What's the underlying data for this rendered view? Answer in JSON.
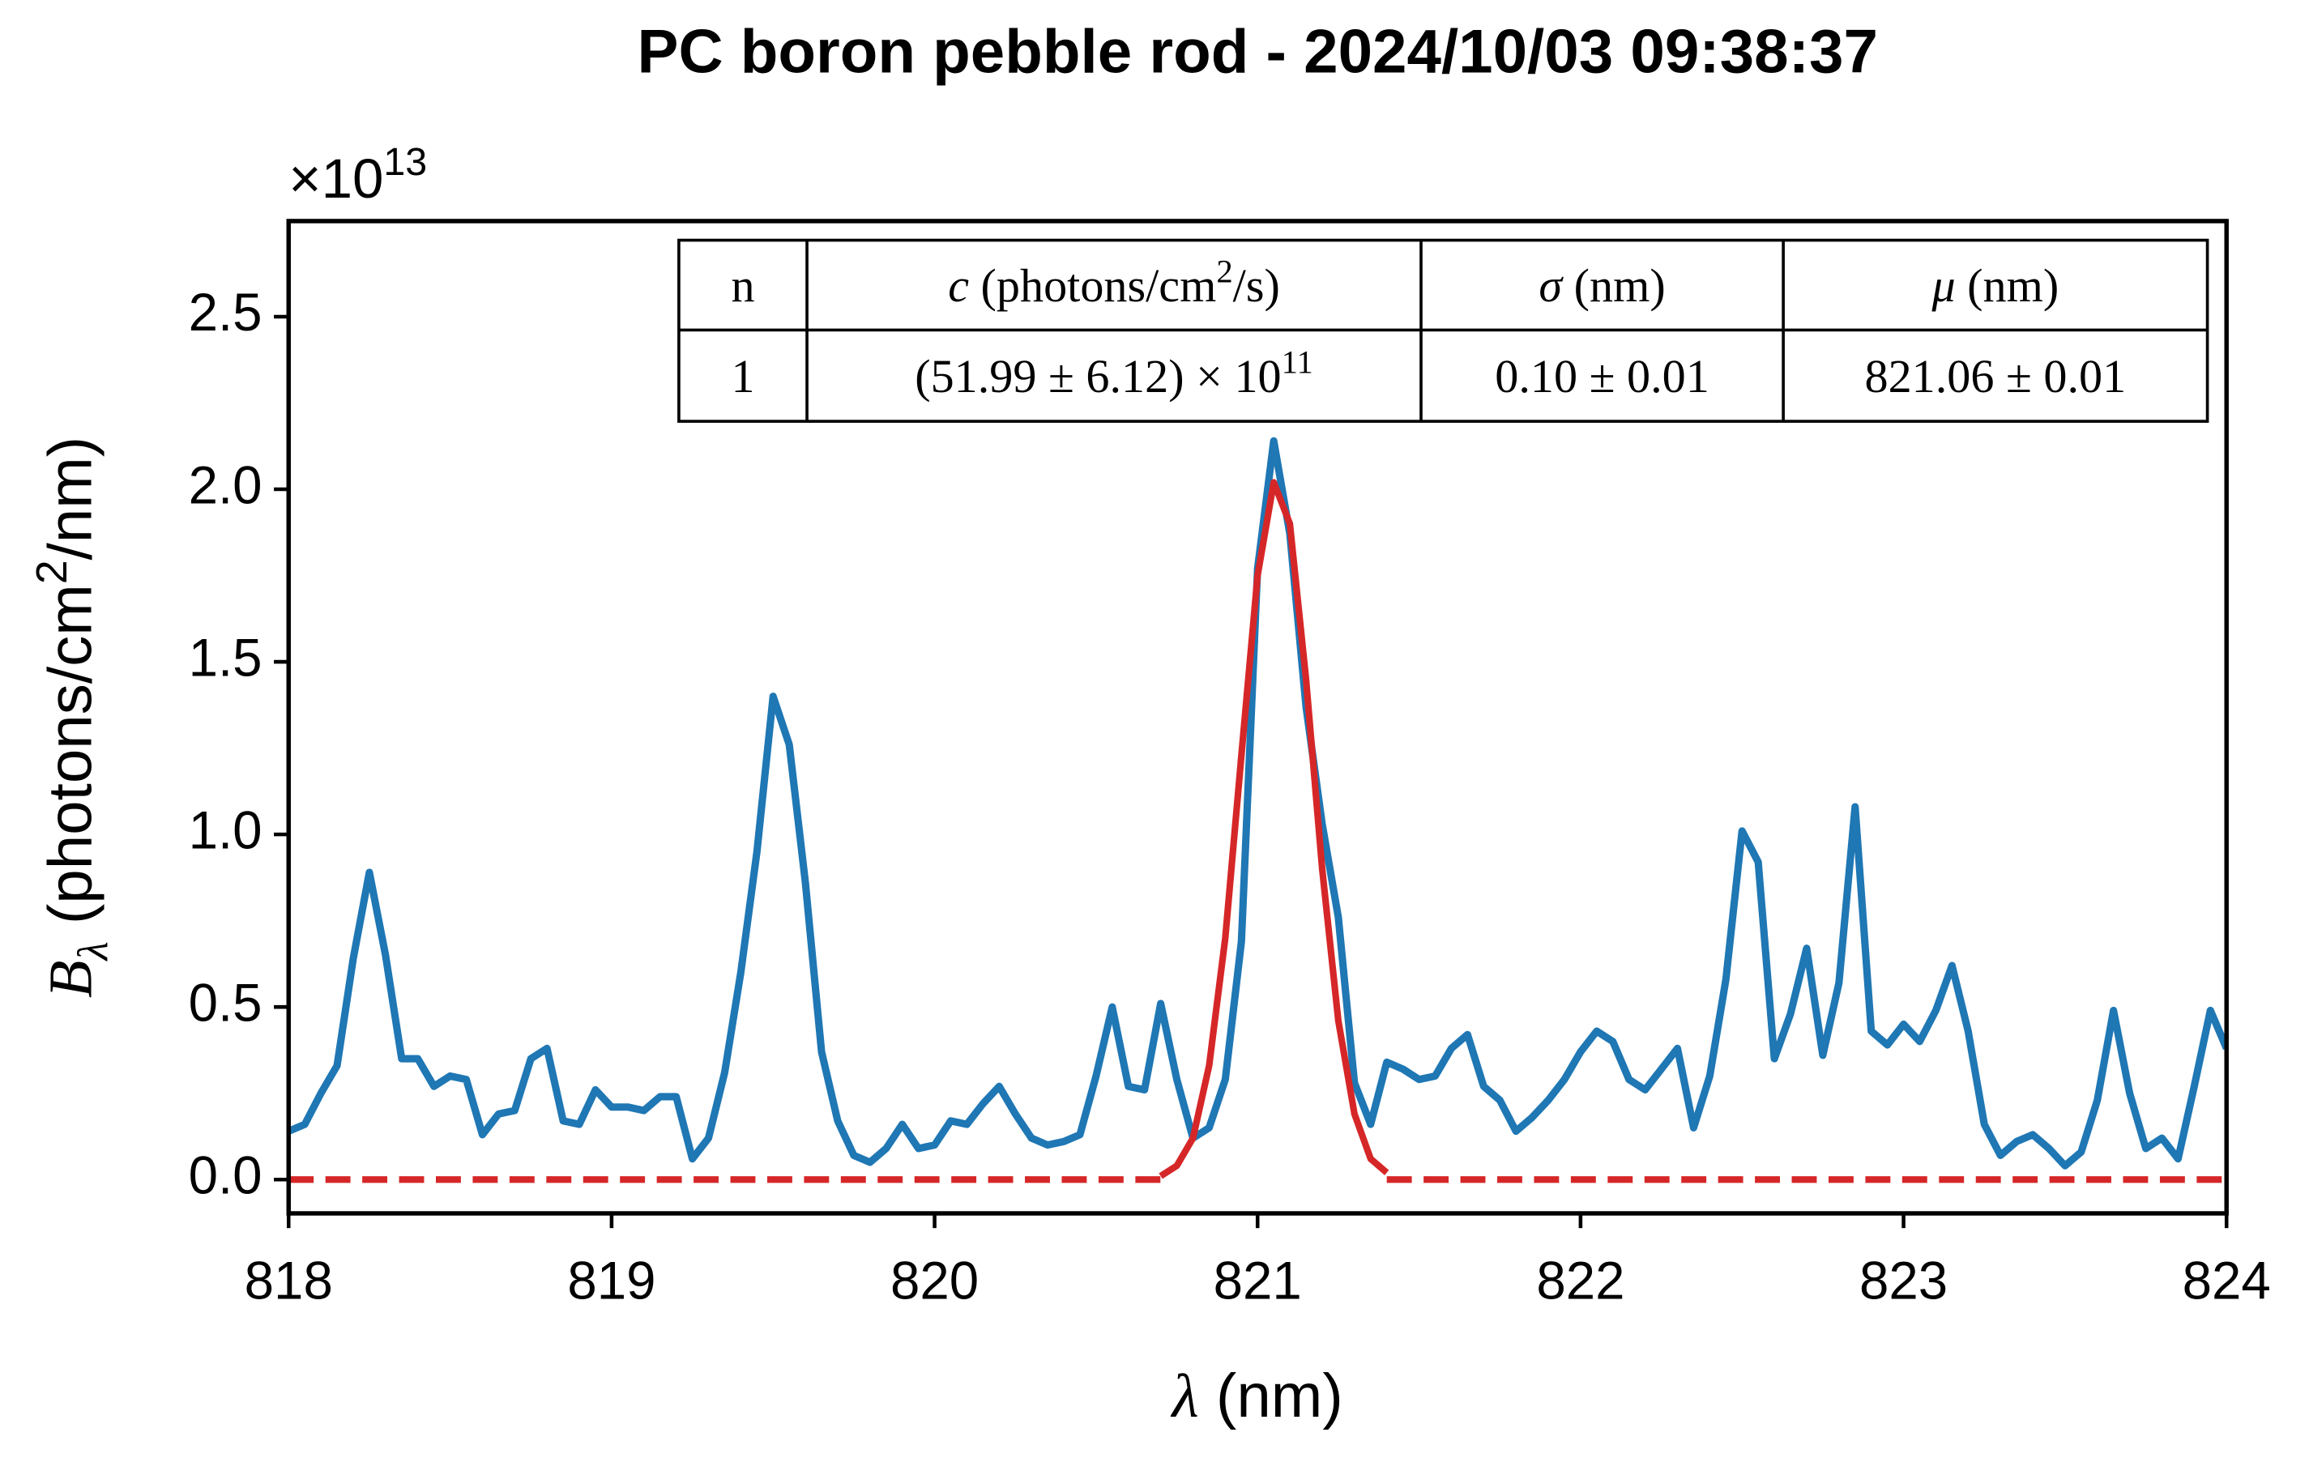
{
  "chart_data": {
    "type": "line",
    "title": "PC boron pebble rod - 2024/10/03 09:38:37",
    "xlabel": [
      {
        "text": "λ",
        "style": "italic"
      },
      {
        "text": " (nm)",
        "style": "normal"
      }
    ],
    "ylabel": [
      {
        "text": "B",
        "style": "italic"
      },
      {
        "text": "λ",
        "style": "sub"
      },
      {
        "text": " (photons/cm",
        "style": "normal"
      },
      {
        "text": "2",
        "style": "sup"
      },
      {
        "text": "/nm)",
        "style": "normal"
      }
    ],
    "offset_label": [
      {
        "text": "×10",
        "style": "normal"
      },
      {
        "text": "13",
        "style": "sup"
      }
    ],
    "xlim": [
      818,
      824
    ],
    "ylim": [
      -0.098,
      2.777
    ],
    "xticks": [
      818,
      819,
      820,
      821,
      822,
      823,
      824
    ],
    "yticks": [
      {
        "value": 0,
        "label": "0.0"
      },
      0.5,
      {
        "value": 1,
        "label": "1.0"
      },
      1.5,
      {
        "value": 2,
        "label": "2.0"
      },
      2.5
    ],
    "series": [
      {
        "color": "#1f77b4",
        "linestyle": "solid",
        "x": [
          818,
          818.05,
          818.1,
          818.15,
          818.2,
          818.25,
          818.3,
          818.35,
          818.4,
          818.45,
          818.5,
          818.55,
          818.6,
          818.65,
          818.7,
          818.75,
          818.8,
          818.85,
          818.9,
          818.95,
          819,
          819.05,
          819.1,
          819.15,
          819.2,
          819.25,
          819.3,
          819.35,
          819.4,
          819.45,
          819.5,
          819.55,
          819.6,
          819.65,
          819.7,
          819.75,
          819.8,
          819.85,
          819.9,
          819.95,
          820,
          820.05,
          820.1,
          820.15,
          820.2,
          820.25,
          820.3,
          820.35,
          820.4,
          820.45,
          820.5,
          820.55,
          820.6,
          820.65,
          820.7,
          820.75,
          820.8,
          820.85,
          820.9,
          820.95,
          821,
          821.05,
          821.1,
          821.15,
          821.2,
          821.25,
          821.3,
          821.35,
          821.4,
          821.45,
          821.5,
          821.55,
          821.6,
          821.65,
          821.7,
          821.75,
          821.8,
          821.85,
          821.9,
          821.95,
          822,
          822.05,
          822.1,
          822.15,
          822.2,
          822.25,
          822.3,
          822.35,
          822.4,
          822.45,
          822.5,
          822.55,
          822.6,
          822.65,
          822.7,
          822.75,
          822.8,
          822.85,
          822.9,
          822.95,
          823,
          823.05,
          823.1,
          823.15,
          823.2,
          823.25,
          823.3,
          823.35,
          823.4,
          823.45,
          823.5,
          823.55,
          823.6,
          823.65,
          823.7,
          823.75,
          823.8,
          823.85,
          823.9,
          823.95,
          824
        ],
        "values": [
          0.14,
          0.16,
          0.25,
          0.33,
          0.64,
          0.89,
          0.65,
          0.35,
          0.35,
          0.27,
          0.3,
          0.29,
          0.13,
          0.19,
          0.2,
          0.35,
          0.38,
          0.17,
          0.16,
          0.26,
          0.21,
          0.21,
          0.2,
          0.24,
          0.24,
          0.06,
          0.12,
          0.31,
          0.6,
          0.95,
          1.4,
          1.26,
          0.86,
          0.37,
          0.17,
          0.07,
          0.05,
          0.09,
          0.16,
          0.09,
          0.1,
          0.17,
          0.16,
          0.22,
          0.27,
          0.19,
          0.12,
          0.1,
          0.11,
          0.13,
          0.3,
          0.5,
          0.27,
          0.26,
          0.51,
          0.29,
          0.12,
          0.15,
          0.29,
          0.69,
          1.77,
          2.14,
          1.87,
          1.37,
          1.03,
          0.76,
          0.28,
          0.16,
          0.34,
          0.32,
          0.29,
          0.3,
          0.38,
          0.42,
          0.27,
          0.23,
          0.14,
          0.18,
          0.23,
          0.29,
          0.37,
          0.43,
          0.4,
          0.29,
          0.26,
          0.32,
          0.38,
          0.15,
          0.3,
          0.58,
          1.01,
          0.92,
          0.35,
          0.48,
          0.67,
          0.36,
          0.57,
          1.08,
          0.43,
          0.39,
          0.45,
          0.4,
          0.49,
          0.62,
          0.43,
          0.16,
          0.07,
          0.11,
          0.13,
          0.09,
          0.04,
          0.08,
          0.23,
          0.49,
          0.25,
          0.09,
          0.12,
          0.06,
          0.27,
          0.49,
          0.38
        ]
      },
      {
        "color": "#d62728",
        "linestyle": "dashed",
        "x": [
          818,
          820.7
        ],
        "values": [
          0,
          0
        ]
      },
      {
        "color": "#d62728",
        "linestyle": "solid",
        "x": [
          820.7,
          820.75,
          820.8,
          820.85,
          820.9,
          820.95,
          821,
          821.05,
          821.1,
          821.15,
          821.2,
          821.25,
          821.3,
          821.35,
          821.4
        ],
        "values": [
          0.01,
          0.04,
          0.12,
          0.33,
          0.7,
          1.23,
          1.75,
          2.02,
          1.9,
          1.45,
          0.9,
          0.46,
          0.19,
          0.06,
          0.02
        ]
      },
      {
        "color": "#d62728",
        "linestyle": "dashed",
        "x": [
          821.4,
          824
        ],
        "values": [
          0,
          0
        ]
      }
    ],
    "table": {
      "header": [
        [
          {
            "text": "n",
            "style": "normal"
          }
        ],
        [
          {
            "text": "c",
            "style": "italic"
          },
          {
            "text": " (photons/cm",
            "style": "normal"
          },
          {
            "text": "2",
            "style": "sup"
          },
          {
            "text": "/s)",
            "style": "normal"
          }
        ],
        [
          {
            "text": "σ",
            "style": "italic"
          },
          {
            "text": " (nm)",
            "style": "normal"
          }
        ],
        [
          {
            "text": "μ",
            "style": "italic"
          },
          {
            "text": " (nm)",
            "style": "normal"
          }
        ]
      ],
      "rows": [
        [
          [
            {
              "text": "1",
              "style": "normal"
            }
          ],
          [
            {
              "text": "(51.99 ± 6.12) × 10",
              "style": "normal"
            },
            {
              "text": "11",
              "style": "sup"
            }
          ],
          [
            {
              "text": "0.10 ± 0.01",
              "style": "normal"
            }
          ],
          [
            {
              "text": "821.06 ± 0.01",
              "style": "normal"
            }
          ]
        ]
      ]
    }
  }
}
